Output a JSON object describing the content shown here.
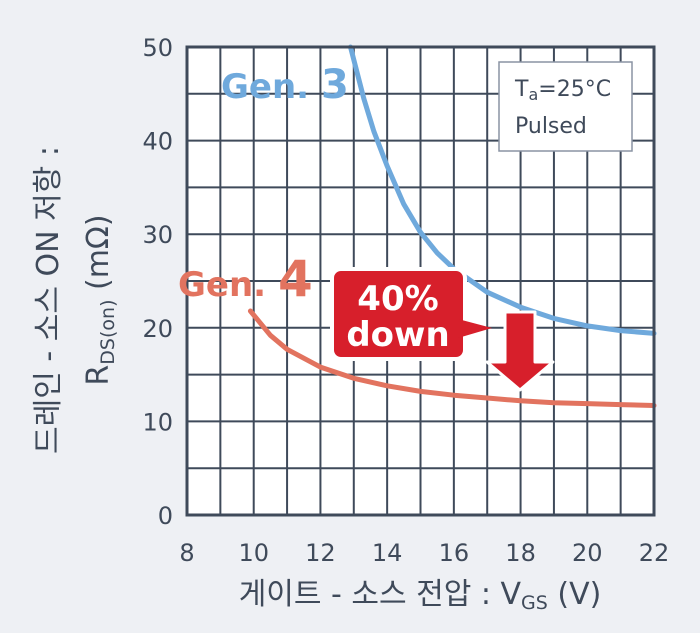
{
  "colors": {
    "background": "#eef0f4",
    "plot_background": "#ffffff",
    "grid": "#3f4a5a",
    "gen3": "#6fa9dc",
    "gen4": "#e2735f",
    "callout": "#d71f2b",
    "text": "#3f4a5a"
  },
  "chart_data": {
    "type": "line",
    "title": "",
    "xlabel": {
      "main": "게이트 - 소스 전압 : V",
      "sub": "GS",
      "unit": " (V)"
    },
    "ylabel": {
      "line1": "드레인 - 소스 ON 저항 :",
      "main": "R",
      "sub": "DS(on)",
      "unit": " (mΩ)"
    },
    "xlim": [
      8,
      22
    ],
    "ylim": [
      0,
      50
    ],
    "xticks": [
      8,
      10,
      12,
      14,
      16,
      18,
      20,
      22
    ],
    "yticks": [
      0,
      10,
      20,
      30,
      40,
      50
    ],
    "grid": true,
    "series": [
      {
        "name": "Gen. 3",
        "label_prefix": "Gen. ",
        "label_number": "3",
        "color": "#6fa9dc",
        "x": [
          12.9,
          13.3,
          13.6,
          14.0,
          14.5,
          15.0,
          15.5,
          16.0,
          17.0,
          18.0,
          19.0,
          20.0,
          21.0,
          22.0
        ],
        "y": [
          50.0,
          44.5,
          41.0,
          37.3,
          33.2,
          30.2,
          28.0,
          26.3,
          23.8,
          22.2,
          21.0,
          20.2,
          19.7,
          19.4
        ]
      },
      {
        "name": "Gen. 4",
        "label_prefix": "Gen. ",
        "label_number": "4",
        "color": "#e2735f",
        "x": [
          9.9,
          10.5,
          11.0,
          12.0,
          13.0,
          14.0,
          15.0,
          16.0,
          17.0,
          18.0,
          19.0,
          20.0,
          21.0,
          22.0
        ],
        "y": [
          21.8,
          19.2,
          17.7,
          15.8,
          14.6,
          13.8,
          13.2,
          12.8,
          12.5,
          12.2,
          12.0,
          11.9,
          11.8,
          11.7
        ]
      }
    ],
    "conditions_box": {
      "line1_main": "T",
      "line1_sub": "a",
      "line1_rest": "=25°C",
      "line2": "Pulsed",
      "placement": "top-right"
    },
    "annotation": {
      "line1": "40%",
      "line2": "down",
      "arrow": "down"
    }
  }
}
